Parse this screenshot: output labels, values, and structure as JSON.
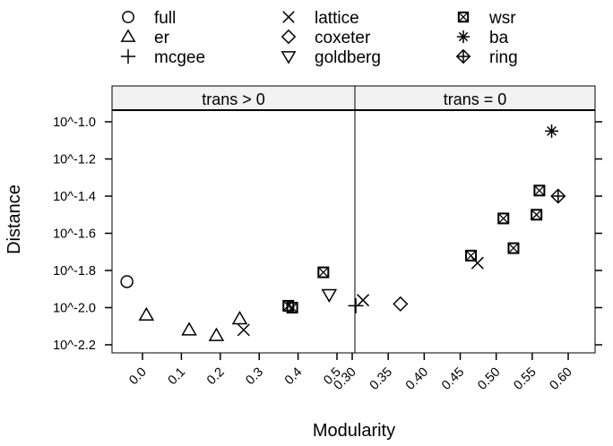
{
  "chart_data": {
    "type": "scatter",
    "title": "",
    "xlabel": "Modularity",
    "ylabel": "Distance",
    "y_scale": "log10",
    "ylim": [
      -2.22,
      -0.94
    ],
    "y_ticks": [
      -1.0,
      -1.2,
      -1.4,
      -1.6,
      -1.8,
      -2.0,
      -2.2
    ],
    "y_tick_labels": [
      "10^-1.0",
      "10^-1.2",
      "10^-1.4",
      "10^-1.6",
      "10^-1.8",
      "10^-2.0",
      "10^-2.2"
    ],
    "legend_position": "top",
    "legend": [
      {
        "name": "full",
        "symbol": "circle"
      },
      {
        "name": "er",
        "symbol": "triangle-up"
      },
      {
        "name": "mcgee",
        "symbol": "plus"
      },
      {
        "name": "lattice",
        "symbol": "cross"
      },
      {
        "name": "coxeter",
        "symbol": "diamond"
      },
      {
        "name": "goldberg",
        "symbol": "triangle-down"
      },
      {
        "name": "wsr",
        "symbol": "boxed-cross"
      },
      {
        "name": "ba",
        "symbol": "asterisk"
      },
      {
        "name": "ring",
        "symbol": "diamond-plus"
      }
    ],
    "panels": [
      {
        "strip": "trans > 0",
        "xlim": [
          -0.08,
          0.54
        ],
        "x_ticks": [
          0.0,
          0.1,
          0.2,
          0.3,
          0.4,
          0.5
        ],
        "x_tick_labels": [
          "0.0",
          "0.1",
          "0.2",
          "0.3",
          "0.4",
          "0.5"
        ],
        "points": [
          {
            "series": "full",
            "x": -0.04,
            "y": -1.86
          },
          {
            "series": "er",
            "x": 0.01,
            "y": -2.04
          },
          {
            "series": "er",
            "x": 0.12,
            "y": -2.12
          },
          {
            "series": "er",
            "x": 0.19,
            "y": -2.15
          },
          {
            "series": "er",
            "x": 0.25,
            "y": -2.06
          },
          {
            "series": "lattice",
            "x": 0.26,
            "y": -2.12
          },
          {
            "series": "wsr",
            "x": 0.375,
            "y": -1.99
          },
          {
            "series": "wsr",
            "x": 0.385,
            "y": -2.0
          },
          {
            "series": "wsr",
            "x": 0.465,
            "y": -1.81
          },
          {
            "series": "goldberg",
            "x": 0.48,
            "y": -1.93
          }
        ]
      },
      {
        "strip": "trans = 0",
        "xlim": [
          0.297,
          0.615
        ],
        "x_ticks": [
          0.3,
          0.35,
          0.4,
          0.45,
          0.5,
          0.55,
          0.6
        ],
        "x_tick_labels": [
          "0.30",
          "0.35",
          "0.40",
          "0.45",
          "0.50",
          "0.55",
          "0.60"
        ],
        "points": [
          {
            "series": "mcgee",
            "x": 0.305,
            "y": -1.99
          },
          {
            "series": "lattice",
            "x": 0.315,
            "y": -1.96
          },
          {
            "series": "coxeter",
            "x": 0.367,
            "y": -1.98
          },
          {
            "series": "wsr",
            "x": 0.465,
            "y": -1.72
          },
          {
            "series": "lattice",
            "x": 0.474,
            "y": -1.76
          },
          {
            "series": "wsr",
            "x": 0.51,
            "y": -1.52
          },
          {
            "series": "wsr",
            "x": 0.524,
            "y": -1.68
          },
          {
            "series": "wsr",
            "x": 0.556,
            "y": -1.5
          },
          {
            "series": "wsr",
            "x": 0.56,
            "y": -1.37
          },
          {
            "series": "ba",
            "x": 0.577,
            "y": -1.05
          },
          {
            "series": "ring",
            "x": 0.586,
            "y": -1.4
          }
        ]
      }
    ],
    "grid": false
  }
}
